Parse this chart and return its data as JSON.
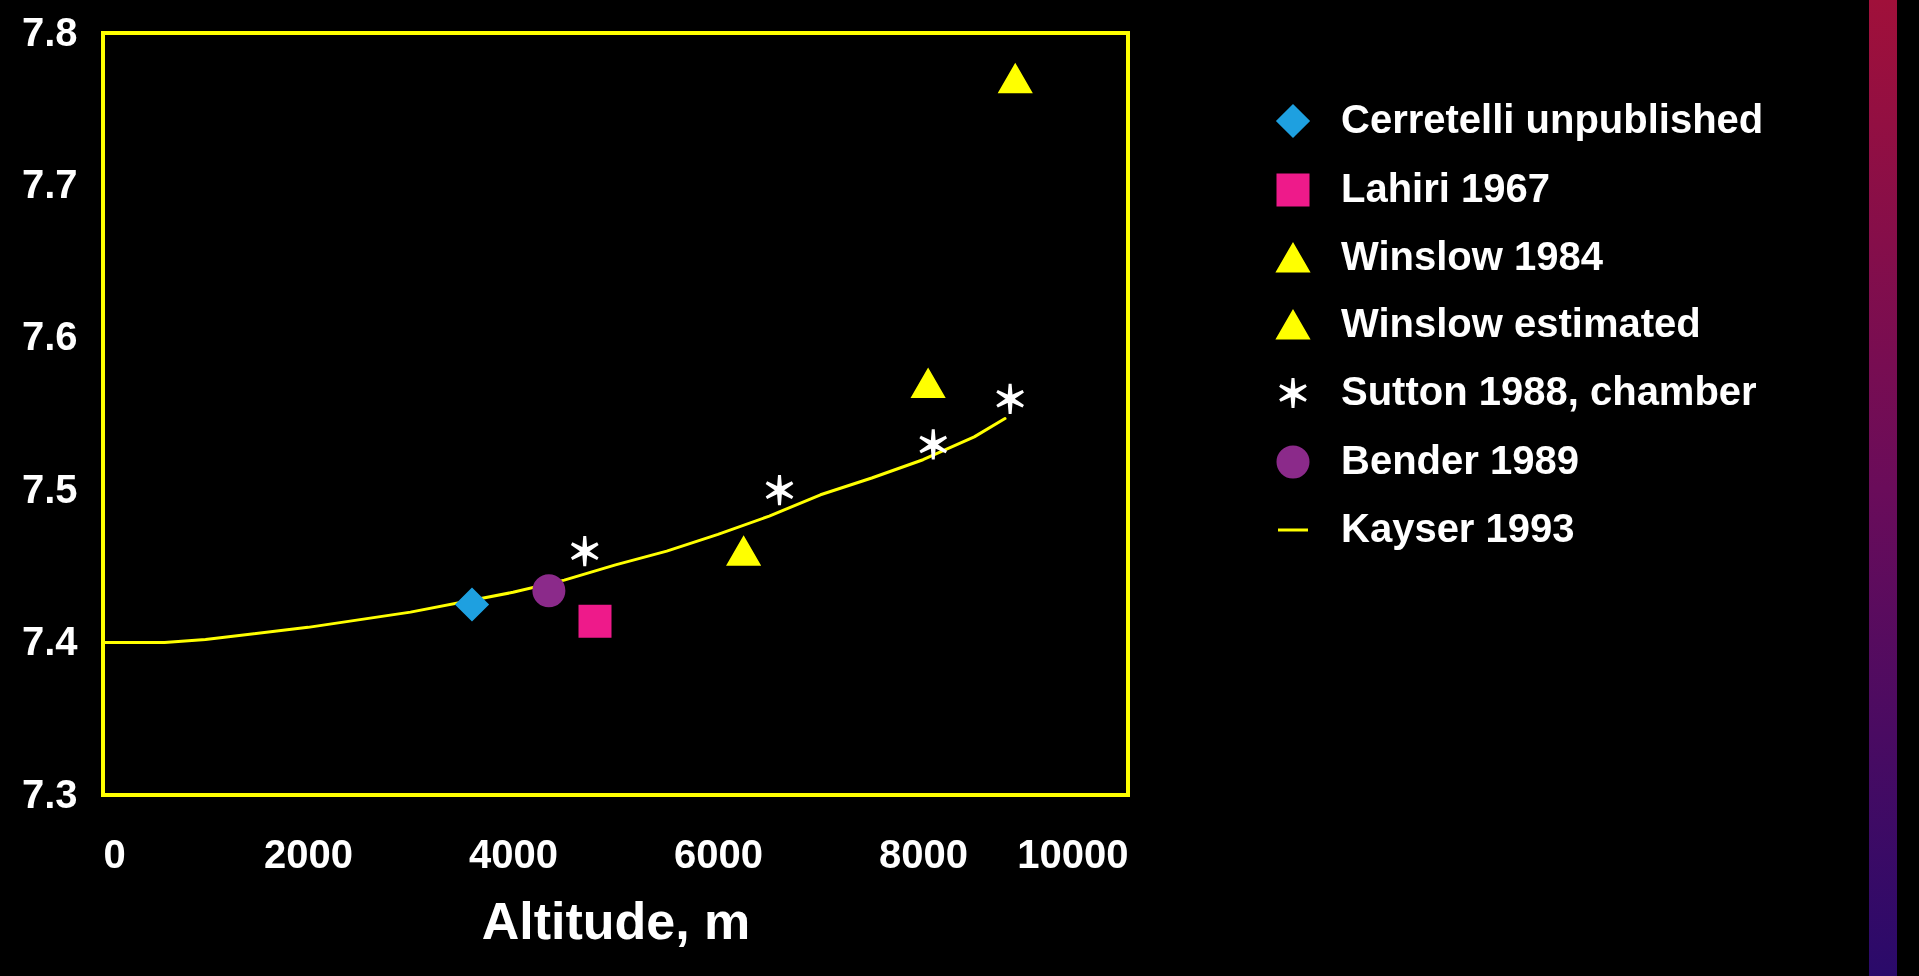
{
  "chart_data": {
    "type": "scatter",
    "xlabel": "Altitude, m",
    "xlim": [
      0,
      10000
    ],
    "xticks": [
      0,
      2000,
      4000,
      6000,
      8000,
      10000
    ],
    "ylim": [
      7.3,
      7.8
    ],
    "yticks": [
      7.3,
      7.4,
      7.5,
      7.6,
      7.7,
      7.8
    ],
    "grid": false,
    "legend": "right",
    "series": [
      {
        "name": "Cerretelli unpublished",
        "marker": "diamond",
        "color": "#1ea0e0",
        "x": [
          3600
        ],
        "values": [
          7.425
        ]
      },
      {
        "name": "Lahiri 1967",
        "marker": "square",
        "color": "#ee1a8a",
        "x": [
          4800
        ],
        "values": [
          7.414
        ]
      },
      {
        "name": "Winslow 1984",
        "marker": "triangle",
        "color": "#ffff00",
        "x": [
          6250
        ],
        "values": [
          7.46
        ]
      },
      {
        "name": "Winslow estimated",
        "marker": "triangle",
        "color": "#ffff00",
        "x": [
          8050,
          8900
        ],
        "values": [
          7.57,
          7.77
        ]
      },
      {
        "name": "Sutton 1988, chamber",
        "marker": "cross",
        "color": "#ffffff",
        "x": [
          4700,
          6600,
          8100,
          8850
        ],
        "values": [
          7.46,
          7.5,
          7.53,
          7.56
        ]
      },
      {
        "name": "Bender 1989",
        "marker": "circle",
        "color": "#8b2a8a",
        "x": [
          4350
        ],
        "values": [
          7.434
        ]
      },
      {
        "name": "Kayser 1993",
        "type": "line",
        "marker": "none",
        "color": "#ffff00",
        "x": [
          0,
          600,
          1000,
          2000,
          3000,
          4000,
          4500,
          5000,
          5500,
          6000,
          6500,
          7000,
          7500,
          8000,
          8500,
          8800
        ],
        "values": [
          7.4,
          7.4,
          7.402,
          7.41,
          7.42,
          7.433,
          7.441,
          7.451,
          7.46,
          7.471,
          7.483,
          7.497,
          7.508,
          7.52,
          7.535,
          7.547
        ]
      }
    ]
  }
}
